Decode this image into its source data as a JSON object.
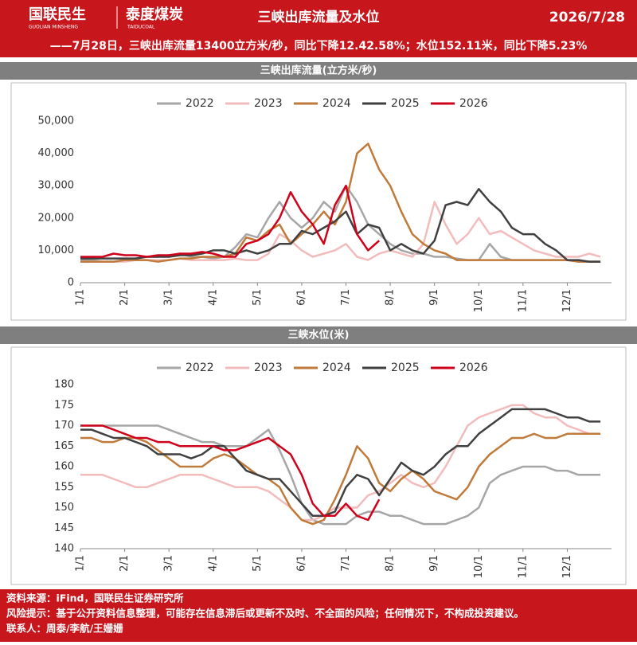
{
  "header": {
    "logo": "国联民生",
    "logo_sub": "GUOLIAN MINSHENG",
    "brand": "泰度煤炭",
    "brand_sub": "TAIDUCOAL",
    "title": "三峡出库流量及水位",
    "date": "2026/7/28",
    "subtitle": "——7月28日，三峡出库流量13400立方米/秒，同比下降12.42.58%；水位152.11米，同比下降5.23%"
  },
  "chart_data": [
    {
      "type": "line",
      "title": "三峡出库流量(立方米/秒)",
      "categories": [
        "1/1",
        null,
        null,
        null,
        "2/1",
        null,
        null,
        null,
        "3/1",
        null,
        null,
        null,
        "4/1",
        null,
        null,
        null,
        "5/1",
        null,
        null,
        null,
        "6/1",
        null,
        null,
        null,
        "7/1",
        null,
        null,
        null,
        "8/1",
        null,
        null,
        null,
        "9/1",
        null,
        null,
        null,
        "10/1",
        null,
        null,
        null,
        "11/1",
        null,
        null,
        null,
        "12/1",
        null,
        null,
        null
      ],
      "ylim": [
        0,
        50000
      ],
      "yticks": [
        0,
        {
          "value": 10000,
          "label": "10,000"
        },
        {
          "value": 20000,
          "label": "20,000"
        },
        {
          "value": 30000,
          "label": "30,000"
        },
        {
          "value": 40000,
          "label": "40,000"
        },
        {
          "value": 50000,
          "label": "50,000"
        }
      ],
      "series": [
        {
          "name": "2022",
          "color": "#a6a6a6",
          "values": [
            7000,
            7000,
            6500,
            6500,
            7000,
            7500,
            8000,
            8000,
            8500,
            9000,
            8000,
            8000,
            7500,
            8000,
            11000,
            15000,
            14000,
            20000,
            25000,
            20000,
            17000,
            20000,
            25000,
            22000,
            30000,
            25000,
            18000,
            15000,
            12000,
            10000,
            9000,
            9000,
            8000,
            8000,
            7500,
            7000,
            7000,
            12000,
            8000,
            7000,
            7000,
            7000,
            7000,
            7000,
            7000,
            6500,
            6500,
            6500
          ]
        },
        {
          "name": "2023",
          "color": "#f2bcbc",
          "values": [
            6500,
            6500,
            6500,
            6500,
            6500,
            7000,
            7000,
            7000,
            7000,
            7500,
            7000,
            7000,
            7000,
            7000,
            7500,
            7000,
            7000,
            9000,
            15000,
            13000,
            10000,
            8000,
            9000,
            10000,
            12000,
            8000,
            7000,
            9000,
            10000,
            9000,
            8000,
            12000,
            25000,
            18000,
            12000,
            15000,
            20000,
            15000,
            16000,
            14000,
            12000,
            10000,
            9000,
            8000,
            8000,
            8000,
            9000,
            8000
          ]
        },
        {
          "name": "2024",
          "color": "#c07a3a",
          "values": [
            6500,
            6500,
            6500,
            6500,
            7000,
            7000,
            7000,
            6500,
            7000,
            7500,
            7500,
            8000,
            8000,
            8000,
            9000,
            14000,
            13000,
            16000,
            18000,
            12000,
            15000,
            18000,
            22000,
            18000,
            25000,
            40000,
            43000,
            35000,
            30000,
            22000,
            15000,
            12000,
            10000,
            9000,
            7000,
            7000,
            7000,
            7000,
            7000,
            7000,
            7000,
            7000,
            7000,
            7000,
            7000,
            6500,
            6500,
            6500
          ]
        },
        {
          "name": "2025",
          "color": "#404040",
          "values": [
            7500,
            7500,
            7500,
            7500,
            7500,
            7500,
            8000,
            8000,
            8000,
            8500,
            8500,
            9000,
            10000,
            10000,
            9000,
            10000,
            9000,
            10000,
            12000,
            12000,
            16000,
            15000,
            17000,
            19000,
            22000,
            15000,
            18000,
            17000,
            10000,
            12000,
            10000,
            9000,
            13000,
            24000,
            25000,
            24000,
            29000,
            25000,
            22000,
            17000,
            15000,
            15000,
            12000,
            10000,
            7000,
            7000,
            6500,
            6500
          ]
        },
        {
          "name": "2026",
          "color": "#d0021b",
          "values": [
            8000,
            8000,
            8000,
            9000,
            8500,
            8500,
            8000,
            8500,
            8500,
            9000,
            9000,
            9500,
            9000,
            8000,
            8000,
            12000,
            13000,
            15000,
            20000,
            28000,
            22000,
            18000,
            12000,
            24000,
            30000,
            15000,
            10000,
            13000,
            null,
            null,
            null,
            null,
            null,
            null,
            null,
            null,
            null,
            null,
            null,
            null,
            null,
            null,
            null,
            null,
            null,
            null,
            null,
            null
          ]
        }
      ]
    },
    {
      "type": "line",
      "title": "三峡水位(米)",
      "categories": [
        "1/1",
        null,
        null,
        null,
        "2/1",
        null,
        null,
        null,
        "3/1",
        null,
        null,
        null,
        "4/1",
        null,
        null,
        null,
        "5/1",
        null,
        null,
        null,
        "6/1",
        null,
        null,
        null,
        "7/1",
        null,
        null,
        null,
        "8/1",
        null,
        null,
        null,
        "9/1",
        null,
        null,
        null,
        "10/1",
        null,
        null,
        null,
        "11/1",
        null,
        null,
        null,
        "12/1",
        null,
        null,
        null
      ],
      "ylim": [
        140,
        180
      ],
      "yticks": [
        140,
        145,
        150,
        155,
        160,
        165,
        170,
        175,
        180
      ],
      "series": [
        {
          "name": "2022",
          "color": "#a6a6a6",
          "values": [
            170,
            170,
            170,
            170,
            170,
            170,
            170,
            170,
            169,
            168,
            167,
            166,
            166,
            165,
            165,
            165,
            167,
            169,
            164,
            158,
            151,
            147,
            146,
            146,
            146,
            148,
            149,
            149,
            148,
            148,
            147,
            146,
            146,
            146,
            147,
            148,
            150,
            156,
            158,
            159,
            160,
            160,
            160,
            159,
            159,
            158,
            158,
            158
          ]
        },
        {
          "name": "2023",
          "color": "#f2bcbc",
          "values": [
            158,
            158,
            158,
            157,
            156,
            155,
            155,
            156,
            157,
            158,
            158,
            158,
            157,
            156,
            155,
            155,
            155,
            154,
            152,
            150,
            147,
            147,
            148,
            150,
            150,
            150,
            153,
            154,
            156,
            158,
            156,
            155,
            156,
            160,
            165,
            170,
            172,
            173,
            174,
            175,
            175,
            173,
            172,
            172,
            170,
            169,
            168,
            168
          ]
        },
        {
          "name": "2024",
          "color": "#c07a3a",
          "values": [
            167,
            167,
            166,
            166,
            167,
            167,
            166,
            164,
            162,
            160,
            160,
            160,
            162,
            163,
            162,
            160,
            158,
            157,
            155,
            150,
            147,
            146,
            147,
            152,
            158,
            165,
            162,
            156,
            154,
            157,
            159,
            157,
            154,
            153,
            152,
            155,
            160,
            163,
            165,
            167,
            167,
            168,
            167,
            167,
            168,
            168,
            168,
            168
          ]
        },
        {
          "name": "2025",
          "color": "#404040",
          "values": [
            169,
            169,
            168,
            167,
            167,
            166,
            165,
            163,
            163,
            163,
            162,
            163,
            165,
            165,
            162,
            159,
            158,
            157,
            157,
            154,
            151,
            148,
            148,
            149,
            155,
            158,
            157,
            153,
            157,
            161,
            159,
            158,
            160,
            163,
            165,
            165,
            168,
            170,
            172,
            174,
            174,
            174,
            174,
            173,
            172,
            172,
            171,
            171
          ]
        },
        {
          "name": "2026",
          "color": "#d0021b",
          "values": [
            170,
            170,
            170,
            169,
            168,
            167,
            167,
            166,
            166,
            165,
            165,
            165,
            165,
            164,
            164,
            165,
            166,
            167,
            165,
            163,
            158,
            151,
            148,
            148,
            151,
            148,
            147,
            152,
            null,
            null,
            null,
            null,
            null,
            null,
            null,
            null,
            null,
            null,
            null,
            null,
            null,
            null,
            null,
            null,
            null,
            null,
            null,
            null
          ]
        }
      ]
    }
  ],
  "footer": {
    "lines": [
      "资料来源：iFind，国联民生证券研究所",
      "风险提示：基于公开资料信息整理，可能存在信息滞后或更新不及时、不全面的风险；任何情况下，不构成投资建议。",
      "联系人：周泰/李航/王姗姗"
    ]
  }
}
